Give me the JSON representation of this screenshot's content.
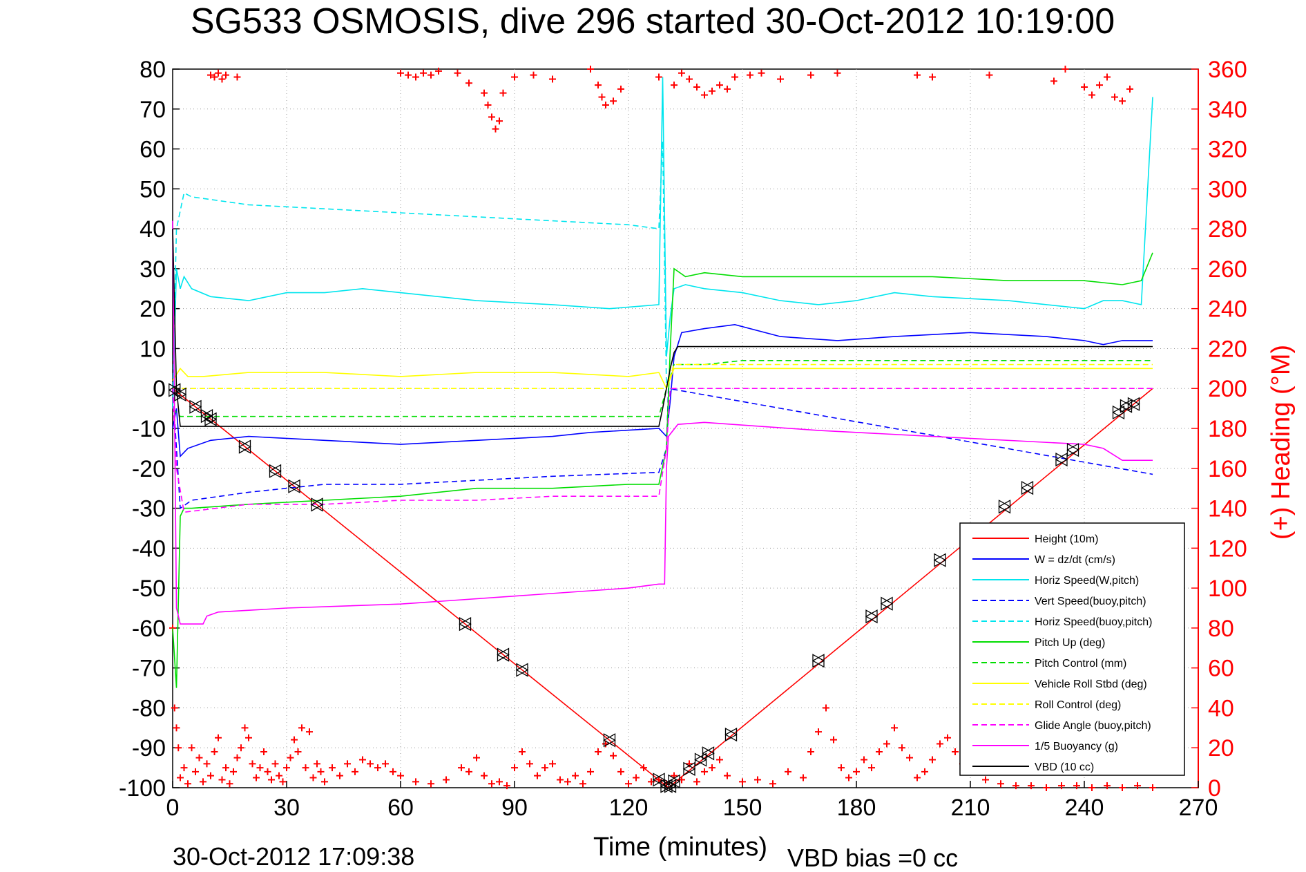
{
  "chart_data": {
    "type": "line",
    "title": "SG533 OSMOSIS, dive 296 started 30-Oct-2012 10:19:00",
    "xlabel": "Time (minutes)",
    "ylabel_right": "(+) Heading (°M)",
    "footer_timestamp": "30-Oct-2012 17:09:38",
    "footer_note": "VBD bias =0 cc",
    "xlim": [
      0,
      270
    ],
    "ylim": [
      -100,
      80
    ],
    "ylim_right": [
      0,
      360
    ],
    "xticks": [
      "0",
      "30",
      "60",
      "90",
      "120",
      "150",
      "180",
      "210",
      "240",
      "270"
    ],
    "yticks": [
      "80",
      "70",
      "60",
      "50",
      "40",
      "30",
      "20",
      "10",
      "0",
      "-10",
      "-20",
      "-30",
      "-40",
      "-50",
      "-60",
      "-70",
      "-80",
      "-90",
      "-100"
    ],
    "yticks_right": [
      "360",
      "340",
      "320",
      "300",
      "280",
      "260",
      "240",
      "220",
      "200",
      "180",
      "160",
      "140",
      "120",
      "100",
      "80",
      "60",
      "40",
      "20",
      "0"
    ],
    "grid": true,
    "legend_position": "bottom-right",
    "colors": {
      "red": "#ff0000",
      "blue": "#0000ff",
      "cyan": "#00e5ee",
      "green": "#00dd00",
      "yellow": "#ffff00",
      "magenta": "#ff00ff",
      "black": "#000000",
      "grid": "#999999"
    },
    "series": [
      {
        "name": "Height (10m)",
        "color": "red",
        "dash": false,
        "x": [
          0,
          130.5,
          258
        ],
        "y": [
          0,
          -100,
          0
        ]
      },
      {
        "name": "W = dz/dt (cm/s)",
        "color": "blue",
        "dash": false,
        "x": [
          0,
          1,
          2,
          4,
          10,
          20,
          40,
          60,
          80,
          100,
          110,
          128,
          130,
          131,
          132,
          134,
          140,
          148,
          160,
          175,
          190,
          210,
          230,
          240,
          245,
          250,
          258
        ],
        "y": [
          -10,
          -5,
          -17,
          -15,
          -13,
          -12,
          -13,
          -14,
          -13,
          -12,
          -11,
          -10,
          -12,
          -3,
          8,
          14,
          15,
          16,
          13,
          12,
          13,
          14,
          13,
          12,
          11,
          12,
          12
        ]
      },
      {
        "name": "Horiz Speed(W,pitch)",
        "color": "cyan",
        "dash": false,
        "x": [
          0,
          1,
          2,
          3,
          5,
          10,
          20,
          30,
          40,
          50,
          60,
          80,
          100,
          115,
          128,
          129,
          130,
          131,
          132,
          135,
          140,
          150,
          160,
          170,
          180,
          190,
          200,
          220,
          240,
          245,
          250,
          255,
          258
        ],
        "y": [
          -5,
          30,
          25,
          28,
          25,
          23,
          22,
          24,
          24,
          25,
          24,
          22,
          21,
          20,
          21,
          78,
          8,
          18,
          25,
          26,
          25,
          24,
          22,
          21,
          22,
          24,
          23,
          22,
          20,
          22,
          22,
          21,
          73
        ]
      },
      {
        "name": "Vert Speed(buoy,pitch)",
        "color": "blue",
        "dash": true,
        "x": [
          0,
          2,
          5,
          20,
          40,
          60,
          80,
          100,
          128,
          130,
          130.5,
          258
        ],
        "y": [
          0,
          -30,
          -28,
          -26,
          -24,
          -24,
          -23,
          -22,
          -21,
          -15,
          0,
          -21.5
        ]
      },
      {
        "name": "Horiz Speed(buoy,pitch)",
        "color": "cyan",
        "dash": true,
        "x": [
          0,
          1,
          3,
          5,
          20,
          40,
          60,
          80,
          100,
          120,
          128,
          129,
          130
        ],
        "y": [
          -2,
          40,
          49,
          48,
          46,
          45,
          44,
          43,
          42,
          41,
          40,
          62,
          0
        ]
      },
      {
        "name": "Pitch Up (deg)",
        "color": "green",
        "dash": false,
        "x": [
          0,
          1,
          2,
          3,
          5,
          20,
          40,
          60,
          80,
          100,
          120,
          128,
          130,
          131,
          132,
          135,
          140,
          150,
          170,
          190,
          200,
          220,
          240,
          250,
          255,
          258
        ],
        "y": [
          -60,
          -75,
          -32,
          -30,
          -30,
          -29,
          -28,
          -27,
          -25,
          -25,
          -24,
          -24,
          -15,
          10,
          30,
          28,
          29,
          28,
          28,
          28,
          28,
          27,
          27,
          26,
          27,
          34
        ]
      },
      {
        "name": "Pitch Control (mm)",
        "color": "green",
        "dash": true,
        "x": [
          0,
          2,
          10,
          50,
          100,
          128,
          130,
          132,
          140,
          150,
          200,
          258
        ],
        "y": [
          -5,
          -7,
          -7,
          -7,
          -7,
          -7,
          0,
          6,
          6,
          7,
          7,
          7
        ]
      },
      {
        "name": "Vehicle Roll Stbd (deg)",
        "color": "yellow",
        "dash": false,
        "x": [
          0,
          2,
          4,
          8,
          20,
          40,
          60,
          80,
          100,
          120,
          128,
          130,
          132,
          140,
          160,
          180,
          200,
          220,
          240,
          250,
          258
        ],
        "y": [
          2,
          5,
          3,
          3,
          4,
          4,
          3,
          4,
          4,
          3,
          4,
          0,
          5,
          5,
          5,
          5,
          5,
          5,
          5,
          5,
          5
        ]
      },
      {
        "name": "Roll Control (deg)",
        "color": "yellow",
        "dash": true,
        "x": [
          0,
          2,
          10,
          50,
          100,
          128,
          130,
          132,
          200,
          258
        ],
        "y": [
          0,
          0,
          0,
          0,
          0,
          0,
          0,
          6,
          6,
          6
        ]
      },
      {
        "name": "Glide Angle (buoy,pitch)",
        "color": "magenta",
        "dash": true,
        "x": [
          0,
          1,
          3,
          20,
          40,
          60,
          80,
          100,
          120,
          128,
          130,
          131,
          258
        ],
        "y": [
          0,
          -20,
          -31,
          -29,
          -29,
          -28,
          -28,
          -27,
          -27,
          -27,
          -15,
          0,
          0
        ]
      },
      {
        "name": "1/5 Buoyancy (g)",
        "color": "magenta",
        "dash": false,
        "x": [
          0,
          1,
          2,
          8,
          9,
          12,
          30,
          60,
          90,
          120,
          128,
          129.5,
          130,
          130.5,
          133,
          140,
          170,
          200,
          240,
          245,
          250,
          258
        ],
        "y": [
          42,
          -55,
          -59,
          -59,
          -57,
          -56,
          -55,
          -54,
          -52,
          -50,
          -49,
          -49,
          -20,
          -12,
          -9,
          -8.5,
          -10.5,
          -12,
          -14,
          -15,
          -18,
          -18
        ]
      },
      {
        "name": "VBD (10 cc)",
        "color": "black",
        "dash": false,
        "x": [
          0,
          1,
          2,
          10,
          60,
          100,
          128,
          129,
          130,
          131,
          132,
          133,
          258
        ],
        "y": [
          40,
          0,
          -9.5,
          -9.5,
          -9.5,
          -9.5,
          -9.5,
          -5,
          0,
          5,
          9,
          10.5,
          10.5
        ]
      }
    ],
    "heading_points_degM": {
      "name": "(+) Heading (°M)",
      "x": [
        0,
        0.5,
        1,
        1.5,
        2,
        3,
        4,
        5,
        6,
        7,
        8,
        9,
        10,
        11,
        12,
        13,
        14,
        15,
        16,
        17,
        18,
        19,
        20,
        21,
        22,
        23,
        24,
        25,
        26,
        27,
        28,
        29,
        30,
        31,
        32,
        33,
        34,
        35,
        36,
        37,
        38,
        39,
        40,
        42,
        44,
        46,
        48,
        50,
        52,
        54,
        56,
        58,
        60,
        64,
        68,
        72,
        76,
        78,
        80,
        82,
        84,
        86,
        88,
        90,
        92,
        94,
        96,
        98,
        100,
        102,
        104,
        106,
        108,
        110,
        112,
        114,
        116,
        118,
        120,
        122,
        124,
        126,
        128,
        130,
        132,
        134,
        136,
        138,
        140,
        142,
        144,
        146,
        150,
        154,
        158,
        162,
        166,
        168,
        170,
        172,
        174,
        176,
        178,
        180,
        182,
        184,
        186,
        188,
        190,
        192,
        194,
        196,
        198,
        200,
        202,
        204,
        206,
        208,
        210,
        214,
        218,
        222,
        226,
        230,
        234,
        238,
        242,
        246,
        250,
        254,
        258,
        10,
        11,
        12,
        13,
        14,
        17,
        60,
        62,
        64,
        66,
        68,
        70,
        75,
        78,
        82,
        83,
        84,
        85,
        86,
        87,
        90,
        95,
        100,
        110,
        112,
        113,
        114,
        116,
        118,
        128,
        132,
        134,
        136,
        138,
        140,
        142,
        144,
        146,
        148,
        152,
        155,
        160,
        168,
        175,
        196,
        200,
        215,
        232,
        235,
        240,
        242,
        244,
        246,
        248,
        250,
        252
      ],
      "y": [
        80,
        40,
        30,
        20,
        5,
        10,
        2,
        20,
        8,
        15,
        3,
        12,
        6,
        18,
        25,
        4,
        10,
        2,
        8,
        15,
        20,
        30,
        25,
        12,
        5,
        10,
        18,
        8,
        4,
        12,
        6,
        3,
        10,
        15,
        24,
        18,
        30,
        10,
        28,
        5,
        12,
        8,
        3,
        10,
        6,
        12,
        8,
        14,
        12,
        10,
        12,
        8,
        6,
        3,
        2,
        4,
        10,
        8,
        15,
        6,
        2,
        3,
        1,
        10,
        18,
        12,
        6,
        10,
        12,
        4,
        3,
        6,
        2,
        8,
        18,
        22,
        16,
        8,
        2,
        5,
        10,
        3,
        4,
        2,
        6,
        4,
        12,
        3,
        8,
        10,
        14,
        6,
        3,
        4,
        2,
        8,
        5,
        18,
        28,
        40,
        24,
        10,
        5,
        8,
        14,
        10,
        18,
        22,
        30,
        20,
        15,
        5,
        8,
        14,
        22,
        25,
        18,
        12,
        8,
        4,
        2,
        1,
        1,
        0,
        1,
        1,
        0,
        1,
        0,
        1,
        0,
        357,
        356,
        358,
        355,
        357,
        356,
        358,
        357,
        356,
        358,
        357,
        359,
        358,
        353,
        348,
        342,
        336,
        330,
        334,
        348,
        356,
        357,
        355,
        360,
        352,
        346,
        342,
        344,
        350,
        356,
        352,
        358,
        355,
        351,
        347,
        349,
        352,
        350,
        356,
        357,
        358,
        355,
        357,
        358,
        357,
        356,
        357,
        354,
        360,
        351,
        347,
        352,
        356,
        346,
        344,
        350
      ]
    },
    "markers_triangles": {
      "x": [
        0.5,
        2,
        6,
        9,
        10,
        19,
        27,
        32,
        38,
        77,
        87,
        92,
        115,
        128,
        130,
        131,
        132,
        136,
        139,
        141,
        147,
        170,
        184,
        188,
        202,
        219,
        225,
        234,
        237,
        249,
        251,
        253
      ],
      "y": [
        -0.4,
        -1.5,
        -4.6,
        -6.9,
        -7.7,
        -14.6,
        -20.7,
        -24.5,
        -29.1,
        -59,
        -66.7,
        -70.5,
        -88.1,
        -98,
        -99.6,
        -99.6,
        -98.4,
        -95.3,
        -93,
        -91.4,
        -86.7,
        -68.2,
        -57.1,
        -53.9,
        -43,
        -29.6,
        -24.9,
        -17.8,
        -15.4,
        -6,
        -4.4,
        -3.9
      ]
    }
  }
}
